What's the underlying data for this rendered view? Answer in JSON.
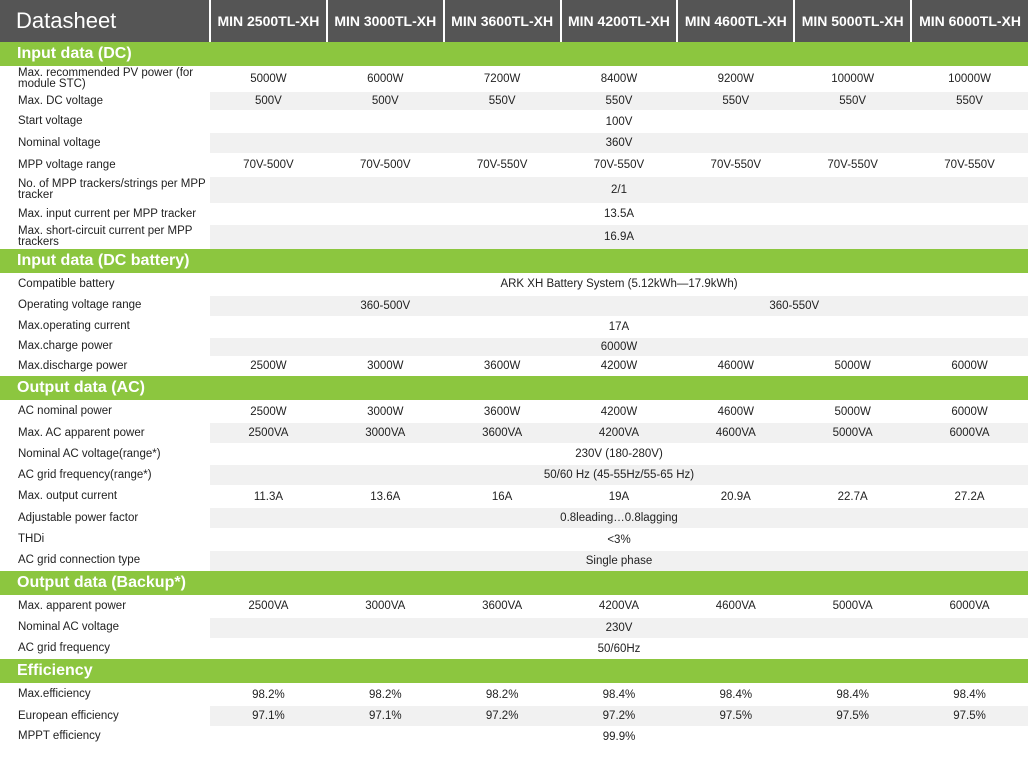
{
  "header": {
    "title": "Datasheet",
    "models": [
      "MIN 2500TL-XH",
      "MIN 3000TL-XH",
      "MIN 3600TL-XH",
      "MIN 4200TL-XH",
      "MIN 4600TL-XH",
      "MIN 5000TL-XH",
      "MIN 6000TL-XH"
    ]
  },
  "sections": [
    {
      "title": "Input data (DC)",
      "rows": [
        {
          "label": "Max. recommended PV power (for module STC)",
          "h": 25,
          "values": [
            "5000W",
            "6000W",
            "7200W",
            "8400W",
            "9200W",
            "10000W",
            "10000W"
          ]
        },
        {
          "label": "Max. DC voltage",
          "h": 19,
          "values": [
            "500V",
            "500V",
            "550V",
            "550V",
            "550V",
            "550V",
            "550V"
          ]
        },
        {
          "label": "Start voltage",
          "h": 22,
          "values": [
            null,
            null,
            null,
            "100V"
          ]
        },
        {
          "label": "Nominal voltage",
          "h": 21,
          "values": [
            null,
            null,
            null,
            "360V"
          ]
        },
        {
          "label": "MPP voltage range",
          "h": 23,
          "values": [
            "70V-500V",
            "70V-500V",
            "70V-550V",
            "70V-550V",
            "70V-550V",
            "70V-550V",
            "70V-550V"
          ]
        },
        {
          "label": "No. of MPP trackers/strings per MPP tracker",
          "h": 27,
          "values": [
            null,
            null,
            null,
            "2/1"
          ]
        },
        {
          "label": "Max. input current per MPP tracker",
          "h": 21,
          "values": [
            null,
            null,
            null,
            "13.5A"
          ]
        },
        {
          "label": "Max. short-circuit current per MPP trackers",
          "h": 24,
          "values": [
            null,
            null,
            null,
            "16.9A"
          ]
        }
      ]
    },
    {
      "title": "Input data (DC battery)",
      "rows": [
        {
          "label": "Compatible battery",
          "h": 22,
          "values": [
            null,
            null,
            null,
            "ARK XH Battery System (5.12kWh—17.9kWh)"
          ]
        },
        {
          "label": "Operating voltage range",
          "h": 21,
          "values": [
            "360-500V",
            null,
            null,
            "360-550V"
          ]
        },
        {
          "label": "Max.operating current",
          "h": 21,
          "values": [
            null,
            null,
            null,
            "17A"
          ]
        },
        {
          "label": "Max.charge power",
          "h": 19,
          "values": [
            null,
            null,
            null,
            "6000W"
          ]
        },
        {
          "label": "Max.discharge power",
          "h": 20,
          "values": [
            "2500W",
            "3000W",
            "3600W",
            "4200W",
            "4600W",
            "5000W",
            "6000W"
          ]
        }
      ]
    },
    {
      "title": "Output data (AC)",
      "rows": [
        {
          "label": "AC nominal power",
          "h": 22,
          "values": [
            "2500W",
            "3000W",
            "3600W",
            "4200W",
            "4600W",
            "5000W",
            "6000W"
          ]
        },
        {
          "label": "Max. AC apparent power",
          "h": 21,
          "values": [
            "2500VA",
            "3000VA",
            "3600VA",
            "4200VA",
            "4600VA",
            "5000VA",
            "6000VA"
          ]
        },
        {
          "label": "Nominal AC voltage(range*)",
          "h": 21,
          "values": [
            null,
            null,
            null,
            "230V (180-280V)"
          ]
        },
        {
          "label": "AC grid frequency(range*)",
          "h": 21,
          "values": [
            null,
            null,
            null,
            "50/60 Hz (45-55Hz/55-65 Hz)"
          ]
        },
        {
          "label": "Max. output current",
          "h": 22,
          "values": [
            "11.3A",
            "13.6A",
            "16A",
            "19A",
            "20.9A",
            "22.7A",
            "27.2A"
          ]
        },
        {
          "label": "Adjustable power factor",
          "h": 21,
          "values": [
            null,
            null,
            null,
            "0.8leading…0.8lagging"
          ]
        },
        {
          "label": "THDi",
          "h": 22,
          "values": [
            null,
            null,
            null,
            "<3%"
          ]
        },
        {
          "label": "AC grid connection type",
          "h": 20,
          "values": [
            null,
            null,
            null,
            "Single phase"
          ]
        }
      ]
    },
    {
      "title": "Output data (Backup*)",
      "rows": [
        {
          "label": "Max. apparent power",
          "h": 22,
          "values": [
            "2500VA",
            "3000VA",
            "3600VA",
            "4200VA",
            "4600VA",
            "5000VA",
            "6000VA"
          ]
        },
        {
          "label": "Nominal AC voltage",
          "h": 21,
          "values": [
            null,
            null,
            null,
            "230V"
          ]
        },
        {
          "label": "AC grid frequency",
          "h": 21,
          "values": [
            null,
            null,
            null,
            "50/60Hz"
          ]
        }
      ]
    },
    {
      "title": "Efficiency",
      "rows": [
        {
          "label": "Max.efficiency",
          "h": 22,
          "values": [
            "98.2%",
            "98.2%",
            "98.2%",
            "98.4%",
            "98.4%",
            "98.4%",
            "98.4%"
          ]
        },
        {
          "label": "European efficiency",
          "h": 21,
          "values": [
            "97.1%",
            "97.1%",
            "97.2%",
            "97.2%",
            "97.5%",
            "97.5%",
            "97.5%"
          ]
        },
        {
          "label": "MPPT efficiency",
          "h": 20,
          "values": [
            null,
            null,
            null,
            "99.9%"
          ]
        }
      ]
    }
  ]
}
